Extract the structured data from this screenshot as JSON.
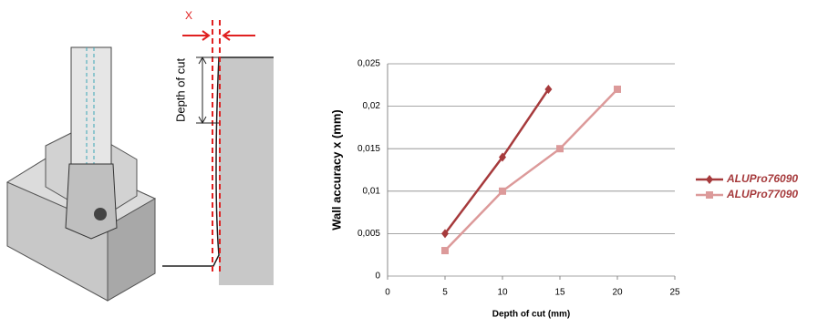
{
  "diagram": {
    "offset_label": "X",
    "depth_label": "Depth of cut"
  },
  "chart_data": {
    "type": "line",
    "xlabel": "Depth of cut (mm)",
    "ylabel": "Wall accuracy x (mm)",
    "series": [
      {
        "name": "ALUPro76090",
        "color": "#a63a3c",
        "marker": "diamond",
        "x": [
          5,
          10,
          14
        ],
        "values": [
          0.005,
          0.014,
          0.022
        ]
      },
      {
        "name": "ALUPro77090",
        "color": "#dc9a9a",
        "marker": "square",
        "x": [
          5,
          10,
          15,
          20
        ],
        "values": [
          0.003,
          0.01,
          0.015,
          0.022
        ]
      }
    ],
    "xlim": [
      0,
      25
    ],
    "xticks": [
      0,
      5,
      10,
      15,
      20,
      25
    ],
    "ylim": [
      0,
      0.025
    ],
    "yticks": [
      0,
      {
        "value": 0.005,
        "label": "0,005"
      },
      {
        "value": 0.01,
        "label": "0,01"
      },
      {
        "value": 0.015,
        "label": "0,015"
      },
      {
        "value": 0.02,
        "label": "0,02"
      },
      {
        "value": 0.025,
        "label": "0,025"
      }
    ],
    "grid": true,
    "legend": "right"
  }
}
